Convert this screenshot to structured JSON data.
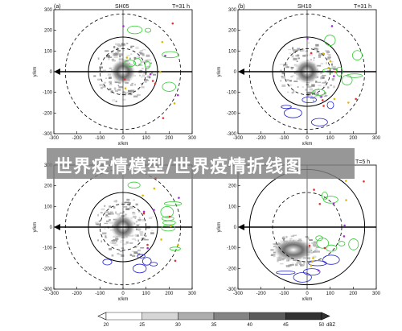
{
  "panels": [
    {
      "id": "a",
      "label": "(a)",
      "title": "SH05",
      "time": "T=31 h",
      "xlabel": "x/km",
      "ylabel": "y/km"
    },
    {
      "id": "b",
      "label": "(b)",
      "title": "SH10",
      "time": "T=31 h",
      "xlabel": "x/km",
      "ylabel": "y/km"
    },
    {
      "id": "c",
      "label": "",
      "title": "",
      "time": "",
      "xlabel": "x/km",
      "ylabel": "y/km"
    },
    {
      "id": "d",
      "label": "",
      "title": "",
      "time": "T=5 h",
      "xlabel": "x/km",
      "ylabel": "y/km"
    }
  ],
  "axis_ticks": [
    "-300",
    "-200",
    "-100",
    "0",
    "100",
    "200",
    "300"
  ],
  "colorbar": {
    "ticks": [
      "20",
      "25",
      "30",
      "35",
      "40",
      "45",
      "50"
    ],
    "unit": "dBZ"
  },
  "banner": {
    "text": "世界疫情模型/世界疫情折线图"
  },
  "colors": {
    "reflectivity_low": "#e8e8e8",
    "reflectivity_high": "#3a3a3a",
    "green_contour": "#33cc33",
    "blue_contour": "#2222cc",
    "red_marker": "#dd3333",
    "yellow_marker": "#ddbb00",
    "purple_marker": "#9933cc"
  },
  "chart_data": {
    "type": "scatter",
    "xlabel": "x/km",
    "ylabel": "y/km",
    "xlim": [
      -300,
      300
    ],
    "ylim": [
      -300,
      300
    ],
    "colorbar_ticks": [
      20,
      25,
      30,
      35,
      40,
      45,
      50
    ],
    "colorbar_unit": "dBZ",
    "range_rings_km": [
      100,
      150,
      250
    ]
  }
}
